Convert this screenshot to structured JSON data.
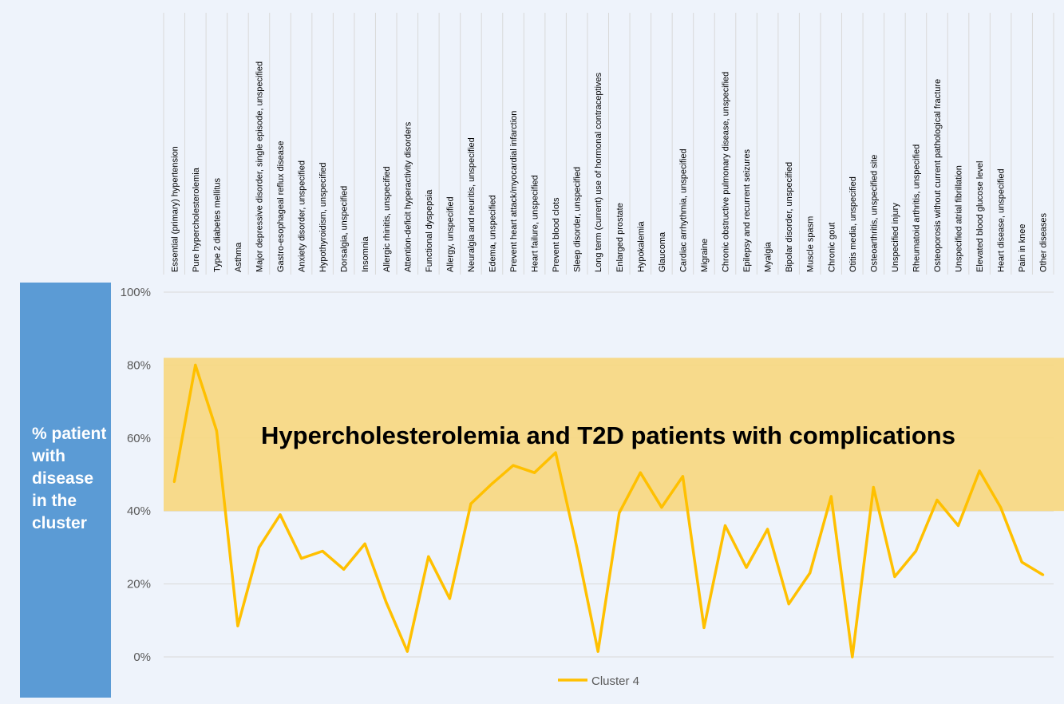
{
  "colors": {
    "background": "#eef3fb",
    "series_line": "#ffc000",
    "band_fill": "#f7d77e",
    "ylabel_box": "#5b9bd5",
    "grid": "#d9d9d9"
  },
  "ylabel_text": "% patient with disease in the cluster",
  "band_label": "Hypercholesterolemia and T2D patients with complications",
  "chart_data": {
    "type": "line",
    "title": "",
    "xlabel": "",
    "ylabel": "% patient with disease in the cluster",
    "ylim": [
      0,
      100
    ],
    "yticks": [
      "0%",
      "20%",
      "40%",
      "60%",
      "80%",
      "100%"
    ],
    "grid": true,
    "legend_position": "bottom",
    "highlight_band": {
      "from": 40,
      "to": 82,
      "label": "Hypercholesterolemia and T2D patients with complications"
    },
    "categories": [
      "Essential (primary) hypertension",
      "Pure hypercholesterolemia",
      "Type 2 diabetes mellitus",
      "Asthma",
      "Major depressive disorder, single episode, unspecified",
      "Gastro-esophageal reflux disease",
      "Anxiety disorder, unspecified",
      "Hypothyroidism, unspecified",
      "Dorsalgia, unspecified",
      "Insomnia",
      "Allergic rhinitis, unspecified",
      "Attention-deficit hyperactivity disorders",
      "Functional dyspepsia",
      "Allergy, unspecified",
      "Neuralgia and neuritis, unspecified",
      "Edema, unspecified",
      "Prevent heart attack/myocardial infarction",
      "Heart failure, unspecified",
      "Prevent blood clots",
      "Sleep disorder, unspecified",
      "Long term (current) use of hormonal contraceptives",
      "Enlarged prostate",
      "Hypokalemia",
      "Glaucoma",
      "Cardiac arrhythmia, unspecified",
      "Migraine",
      "Chronic obstructive pulmonary disease, unspecified",
      "Epilepsy and recurrent seizures",
      "Myalgia",
      "Bipolar disorder, unspecified",
      "Muscle spasm",
      "Chronic gout",
      "Otitis media, unspecified",
      "Osteoarthritis, unspecified site",
      "Unspecified injury",
      "Rheumatoid arthritis, unspecified",
      "Osteoporosis without current pathological fracture",
      "Unspecified atrial fibrillation",
      "Elevated blood glucose level",
      "Heart disease, unspecified",
      "Pain in knee",
      "Other diseases"
    ],
    "series": [
      {
        "name": "Cluster 4",
        "values": [
          48,
          80,
          62,
          8.5,
          30,
          39,
          27,
          29,
          24,
          31,
          15,
          1.5,
          27.5,
          16,
          42,
          47.5,
          52.5,
          50.5,
          56,
          30,
          1.5,
          39.5,
          50.5,
          41,
          49.5,
          8,
          36,
          24.5,
          35,
          14.5,
          23,
          44,
          0,
          46.5,
          22,
          29,
          43,
          36,
          51,
          41,
          26,
          22.5
        ]
      }
    ]
  }
}
